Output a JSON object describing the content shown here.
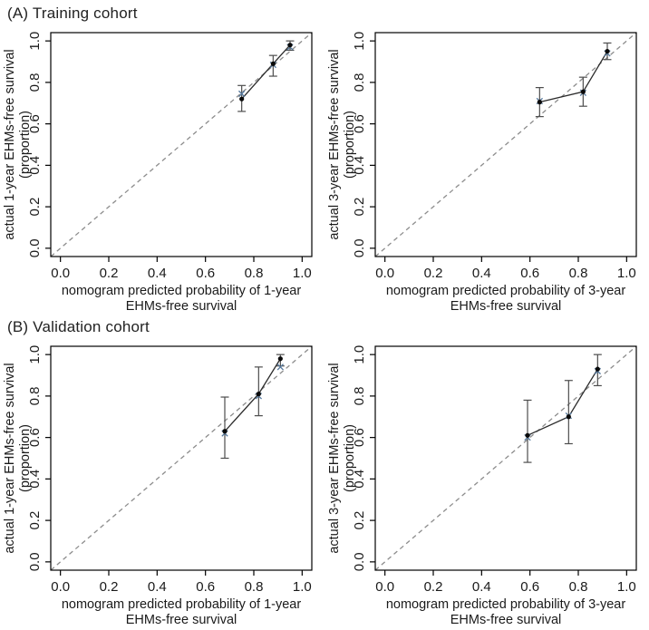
{
  "figure": {
    "sections": [
      {
        "label": "(A) Training cohort"
      },
      {
        "label": "(B) Validation cohort"
      }
    ]
  },
  "colors": {
    "background": "#ffffff",
    "axis": "#000000",
    "text": "#1a1a1a",
    "reference_line": "#8c8c8c",
    "series_line": "#2b2b2b",
    "error_bar": "#4d4d4d",
    "point": "#0a0a0a",
    "apparent_marker": "#53779c"
  },
  "chart_data": [
    {
      "type": "line",
      "panel": "training-1-year",
      "title": "",
      "xlabel_lines": [
        "nomogram predicted probability of 1-year",
        "EHMs-free survival"
      ],
      "ylabel_lines": [
        "actual 1-year EHMs-free survival",
        "(proportion)"
      ],
      "xlim": [
        0,
        1
      ],
      "ylim": [
        0,
        1
      ],
      "xticks": [
        "0.0",
        "0.2",
        "0.4",
        "0.6",
        "0.8",
        "1.0"
      ],
      "yticks": [
        "0.0",
        "0.2",
        "0.4",
        "0.6",
        "0.8",
        "1.0"
      ],
      "grid": false,
      "reference_line": "dashed 45-degree diagonal",
      "points": [
        {
          "x": 0.75,
          "y": 0.72,
          "apparent_y": 0.745,
          "ci_low": 0.66,
          "ci_high": 0.785
        },
        {
          "x": 0.88,
          "y": 0.89,
          "apparent_y": 0.885,
          "ci_low": 0.83,
          "ci_high": 0.93
        },
        {
          "x": 0.95,
          "y": 0.98,
          "apparent_y": 0.97,
          "ci_low": 0.955,
          "ci_high": 1.0
        }
      ]
    },
    {
      "type": "line",
      "panel": "training-3-year",
      "title": "",
      "xlabel_lines": [
        "nomogram predicted probability of 3-year",
        "EHMs-free survival"
      ],
      "ylabel_lines": [
        "actual 3-year EHMs-free survival",
        "(proportion)"
      ],
      "xlim": [
        0,
        1
      ],
      "ylim": [
        0,
        1
      ],
      "xticks": [
        "0.0",
        "0.2",
        "0.4",
        "0.6",
        "0.8",
        "1.0"
      ],
      "yticks": [
        "0.0",
        "0.2",
        "0.4",
        "0.6",
        "0.8",
        "1.0"
      ],
      "grid": false,
      "reference_line": "dashed 45-degree diagonal",
      "points": [
        {
          "x": 0.64,
          "y": 0.705,
          "apparent_y": 0.71,
          "ci_low": 0.635,
          "ci_high": 0.775
        },
        {
          "x": 0.82,
          "y": 0.755,
          "apparent_y": 0.75,
          "ci_low": 0.685,
          "ci_high": 0.825
        },
        {
          "x": 0.92,
          "y": 0.95,
          "apparent_y": 0.94,
          "ci_low": 0.91,
          "ci_high": 0.99
        }
      ]
    },
    {
      "type": "line",
      "panel": "validation-1-year",
      "title": "",
      "xlabel_lines": [
        "nomogram predicted probability of 1-year",
        "EHMs-free survival"
      ],
      "ylabel_lines": [
        "actual 1-year EHMs-free survival",
        "(proportion)"
      ],
      "xlim": [
        0,
        1
      ],
      "ylim": [
        0,
        1
      ],
      "xticks": [
        "0.0",
        "0.2",
        "0.4",
        "0.6",
        "0.8",
        "1.0"
      ],
      "yticks": [
        "0.0",
        "0.2",
        "0.4",
        "0.6",
        "0.8",
        "1.0"
      ],
      "grid": false,
      "reference_line": "dashed 45-degree diagonal",
      "points": [
        {
          "x": 0.68,
          "y": 0.63,
          "apparent_y": 0.62,
          "ci_low": 0.5,
          "ci_high": 0.795
        },
        {
          "x": 0.82,
          "y": 0.81,
          "apparent_y": 0.8,
          "ci_low": 0.705,
          "ci_high": 0.94
        },
        {
          "x": 0.91,
          "y": 0.98,
          "apparent_y": 0.94,
          "ci_low": 0.945,
          "ci_high": 1.0
        }
      ]
    },
    {
      "type": "line",
      "panel": "validation-3-year",
      "title": "",
      "xlabel_lines": [
        "nomogram predicted probability of 3-year",
        "EHMs-free survival"
      ],
      "ylabel_lines": [
        "actual 3-year EHMs-free survival",
        "(proportion)"
      ],
      "xlim": [
        0,
        1
      ],
      "ylim": [
        0,
        1
      ],
      "xticks": [
        "0.0",
        "0.2",
        "0.4",
        "0.6",
        "0.8",
        "1.0"
      ],
      "yticks": [
        "0.0",
        "0.2",
        "0.4",
        "0.6",
        "0.8",
        "1.0"
      ],
      "grid": false,
      "reference_line": "dashed 45-degree diagonal",
      "points": [
        {
          "x": 0.59,
          "y": 0.61,
          "apparent_y": 0.6,
          "ci_low": 0.48,
          "ci_high": 0.78
        },
        {
          "x": 0.76,
          "y": 0.7,
          "apparent_y": 0.705,
          "ci_low": 0.57,
          "ci_high": 0.875
        },
        {
          "x": 0.88,
          "y": 0.93,
          "apparent_y": 0.92,
          "ci_low": 0.85,
          "ci_high": 1.0
        }
      ]
    }
  ]
}
